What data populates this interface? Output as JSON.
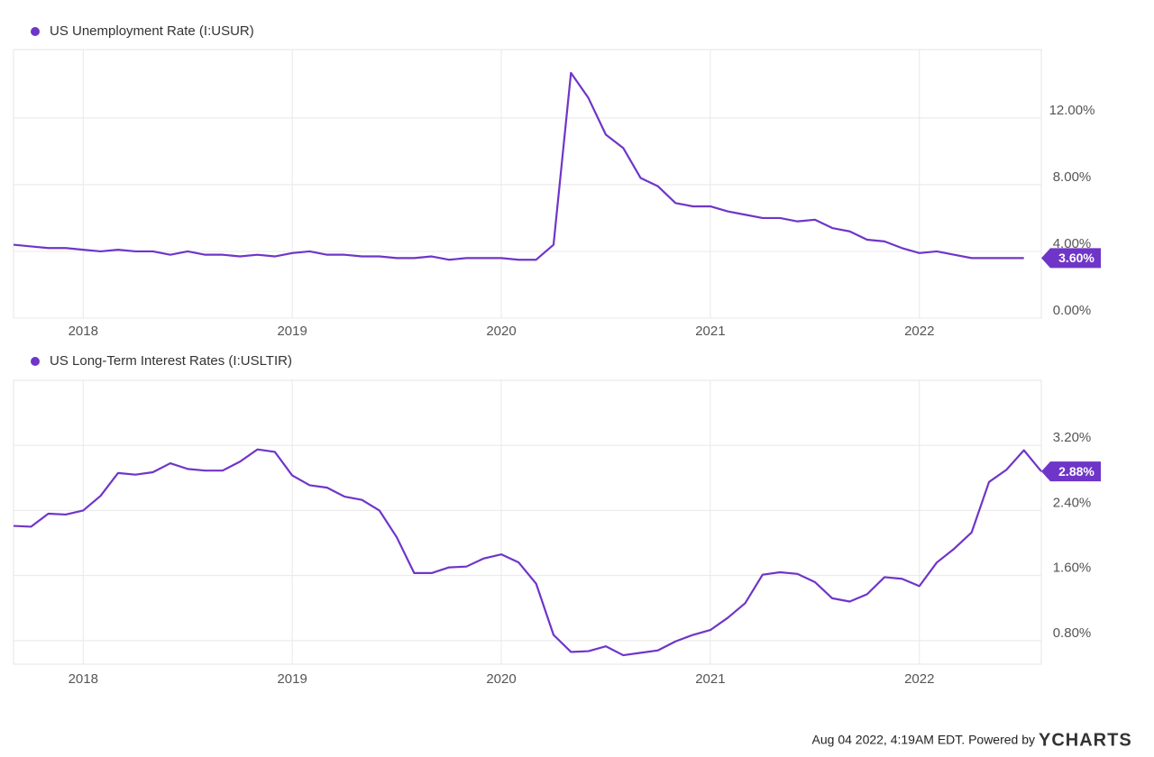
{
  "chart_data": [
    {
      "type": "line",
      "x": [
        2017.6667,
        2017.75,
        2017.8333,
        2017.9167,
        2018,
        2018.0833,
        2018.1667,
        2018.25,
        2018.3333,
        2018.4167,
        2018.5,
        2018.5833,
        2018.6667,
        2018.75,
        2018.8333,
        2018.9167,
        2019,
        2019.0833,
        2019.1667,
        2019.25,
        2019.3333,
        2019.4167,
        2019.5,
        2019.5833,
        2019.6667,
        2019.75,
        2019.8333,
        2019.9167,
        2020,
        2020.0833,
        2020.1667,
        2020.25,
        2020.3333,
        2020.4167,
        2020.5,
        2020.5833,
        2020.6667,
        2020.75,
        2020.8333,
        2020.9167,
        2021,
        2021.0833,
        2021.1667,
        2021.25,
        2021.3333,
        2021.4167,
        2021.5,
        2021.5833,
        2021.6667,
        2021.75,
        2021.8333,
        2021.9167,
        2022,
        2022.0833,
        2022.1667,
        2022.25,
        2022.3333,
        2022.4167,
        2022.5
      ],
      "series": [
        {
          "name": "US Unemployment Rate (I:USUR)",
          "color": "#6f35c8",
          "values": [
            4.4,
            4.3,
            4.2,
            4.2,
            4.1,
            4.0,
            4.1,
            4.0,
            4.0,
            3.8,
            4.0,
            3.8,
            3.8,
            3.7,
            3.8,
            3.7,
            3.9,
            4.0,
            3.8,
            3.8,
            3.7,
            3.7,
            3.6,
            3.6,
            3.7,
            3.5,
            3.6,
            3.6,
            3.6,
            3.5,
            3.5,
            4.4,
            14.7,
            13.2,
            11.0,
            10.2,
            8.4,
            7.9,
            6.9,
            6.7,
            6.7,
            6.4,
            6.2,
            6.0,
            6.0,
            5.8,
            5.9,
            5.4,
            5.2,
            4.7,
            4.6,
            4.2,
            3.9,
            4.0,
            3.8,
            3.6,
            3.6,
            3.6,
            3.6
          ],
          "value_labels": [
            null,
            null,
            null,
            null,
            null,
            null,
            null,
            null,
            null,
            null,
            null,
            null,
            null,
            null,
            null,
            null,
            null,
            null,
            null,
            null,
            null,
            null,
            null,
            null,
            null,
            null,
            null,
            null,
            null,
            null,
            null,
            null,
            null,
            null,
            null,
            null,
            null,
            null,
            null,
            null,
            null,
            null,
            null,
            null,
            null,
            null,
            null,
            null,
            null,
            null,
            null,
            null,
            null,
            null,
            null,
            null,
            null,
            null,
            "3.60%"
          ]
        }
      ],
      "xlim": [
        2017.6667,
        2022.5833
      ],
      "xticks": [
        2018,
        2019,
        2020,
        2021,
        2022
      ],
      "ylim": [
        0,
        16.1
      ],
      "yticks": [
        {
          "value": 0,
          "label": "0.00%"
        },
        {
          "value": 4,
          "label": "4.00%"
        },
        {
          "value": 8,
          "label": "8.00%"
        },
        {
          "value": 12,
          "label": "12.00%"
        }
      ],
      "grid": true
    },
    {
      "type": "line",
      "x": [
        2017.6667,
        2017.75,
        2017.8333,
        2017.9167,
        2018,
        2018.0833,
        2018.1667,
        2018.25,
        2018.3333,
        2018.4167,
        2018.5,
        2018.5833,
        2018.6667,
        2018.75,
        2018.8333,
        2018.9167,
        2019,
        2019.0833,
        2019.1667,
        2019.25,
        2019.3333,
        2019.4167,
        2019.5,
        2019.5833,
        2019.6667,
        2019.75,
        2019.8333,
        2019.9167,
        2020,
        2020.0833,
        2020.1667,
        2020.25,
        2020.3333,
        2020.4167,
        2020.5,
        2020.5833,
        2020.6667,
        2020.75,
        2020.8333,
        2020.9167,
        2021,
        2021.0833,
        2021.1667,
        2021.25,
        2021.3333,
        2021.4167,
        2021.5,
        2021.5833,
        2021.6667,
        2021.75,
        2021.8333,
        2021.9167,
        2022,
        2022.0833,
        2022.1667,
        2022.25,
        2022.3333,
        2022.4167,
        2022.5,
        2022.5833
      ],
      "series": [
        {
          "name": "US Long-Term Interest Rates (I:USLTIR)",
          "color": "#6f35c8",
          "values": [
            2.21,
            2.2,
            2.36,
            2.35,
            2.4,
            2.58,
            2.86,
            2.84,
            2.87,
            2.98,
            2.91,
            2.89,
            2.89,
            3.0,
            3.15,
            3.12,
            2.83,
            2.71,
            2.68,
            2.57,
            2.53,
            2.4,
            2.07,
            1.63,
            1.63,
            1.7,
            1.71,
            1.81,
            1.86,
            1.76,
            1.5,
            0.87,
            0.66,
            0.67,
            0.73,
            0.62,
            0.65,
            0.68,
            0.79,
            0.87,
            0.93,
            1.08,
            1.26,
            1.61,
            1.64,
            1.62,
            1.52,
            1.32,
            1.28,
            1.37,
            1.58,
            1.56,
            1.47,
            1.76,
            1.93,
            2.13,
            2.75,
            2.9,
            3.14,
            2.88
          ],
          "value_labels": [
            null,
            null,
            null,
            null,
            null,
            null,
            null,
            null,
            null,
            null,
            null,
            null,
            null,
            null,
            null,
            null,
            null,
            null,
            null,
            null,
            null,
            null,
            null,
            null,
            null,
            null,
            null,
            null,
            null,
            null,
            null,
            null,
            null,
            null,
            null,
            null,
            null,
            null,
            null,
            null,
            null,
            null,
            null,
            null,
            null,
            null,
            null,
            null,
            null,
            null,
            null,
            null,
            null,
            null,
            null,
            null,
            null,
            null,
            null,
            "2.88%"
          ]
        }
      ],
      "xlim": [
        2017.6667,
        2022.5833
      ],
      "xticks": [
        2018,
        2019,
        2020,
        2021,
        2022
      ],
      "ylim": [
        0.51,
        4.0
      ],
      "yticks": [
        {
          "value": 0.8,
          "label": "0.80%"
        },
        {
          "value": 1.6,
          "label": "1.60%"
        },
        {
          "value": 2.4,
          "label": "2.40%"
        },
        {
          "value": 3.2,
          "label": "3.20%"
        }
      ],
      "grid": true
    }
  ],
  "footer": {
    "text": "Aug 04 2022, 4:19AM EDT. Powered by",
    "brand": "YCHARTS"
  }
}
